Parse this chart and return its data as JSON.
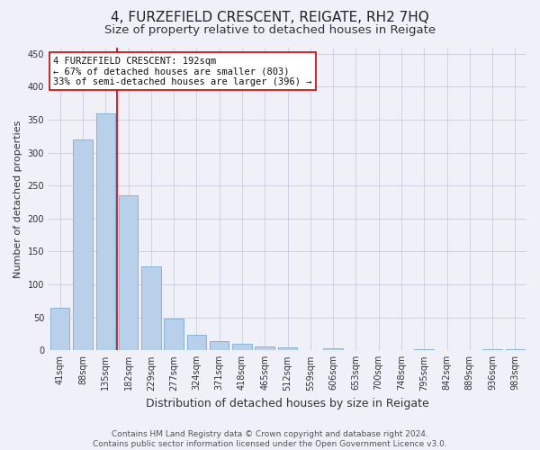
{
  "title": "4, FURZEFIELD CRESCENT, REIGATE, RH2 7HQ",
  "subtitle": "Size of property relative to detached houses in Reigate",
  "xlabel": "Distribution of detached houses by size in Reigate",
  "ylabel": "Number of detached properties",
  "categories": [
    "41sqm",
    "88sqm",
    "135sqm",
    "182sqm",
    "229sqm",
    "277sqm",
    "324sqm",
    "371sqm",
    "418sqm",
    "465sqm",
    "512sqm",
    "559sqm",
    "606sqm",
    "653sqm",
    "700sqm",
    "748sqm",
    "795sqm",
    "842sqm",
    "889sqm",
    "936sqm",
    "983sqm"
  ],
  "values": [
    65,
    320,
    360,
    236,
    127,
    48,
    24,
    14,
    10,
    6,
    4,
    0,
    3,
    0,
    0,
    0,
    2,
    0,
    0,
    2,
    2
  ],
  "bar_color": "#b8d0ea",
  "bar_edge_color": "#7aadd4",
  "vline_color": "#cc0000",
  "annotation_text": "4 FURZEFIELD CRESCENT: 192sqm\n← 67% of detached houses are smaller (803)\n33% of semi-detached houses are larger (396) →",
  "ylim": [
    0,
    460
  ],
  "yticks": [
    0,
    50,
    100,
    150,
    200,
    250,
    300,
    350,
    400,
    450
  ],
  "footer_line1": "Contains HM Land Registry data © Crown copyright and database right 2024.",
  "footer_line2": "Contains public sector information licensed under the Open Government Licence v3.0.",
  "bg_color": "#f0f0f8",
  "grid_color": "#ccccdd",
  "title_fontsize": 11,
  "subtitle_fontsize": 9.5,
  "xlabel_fontsize": 9,
  "ylabel_fontsize": 8,
  "tick_fontsize": 7,
  "footer_fontsize": 6.5,
  "ann_fontsize": 7.5
}
